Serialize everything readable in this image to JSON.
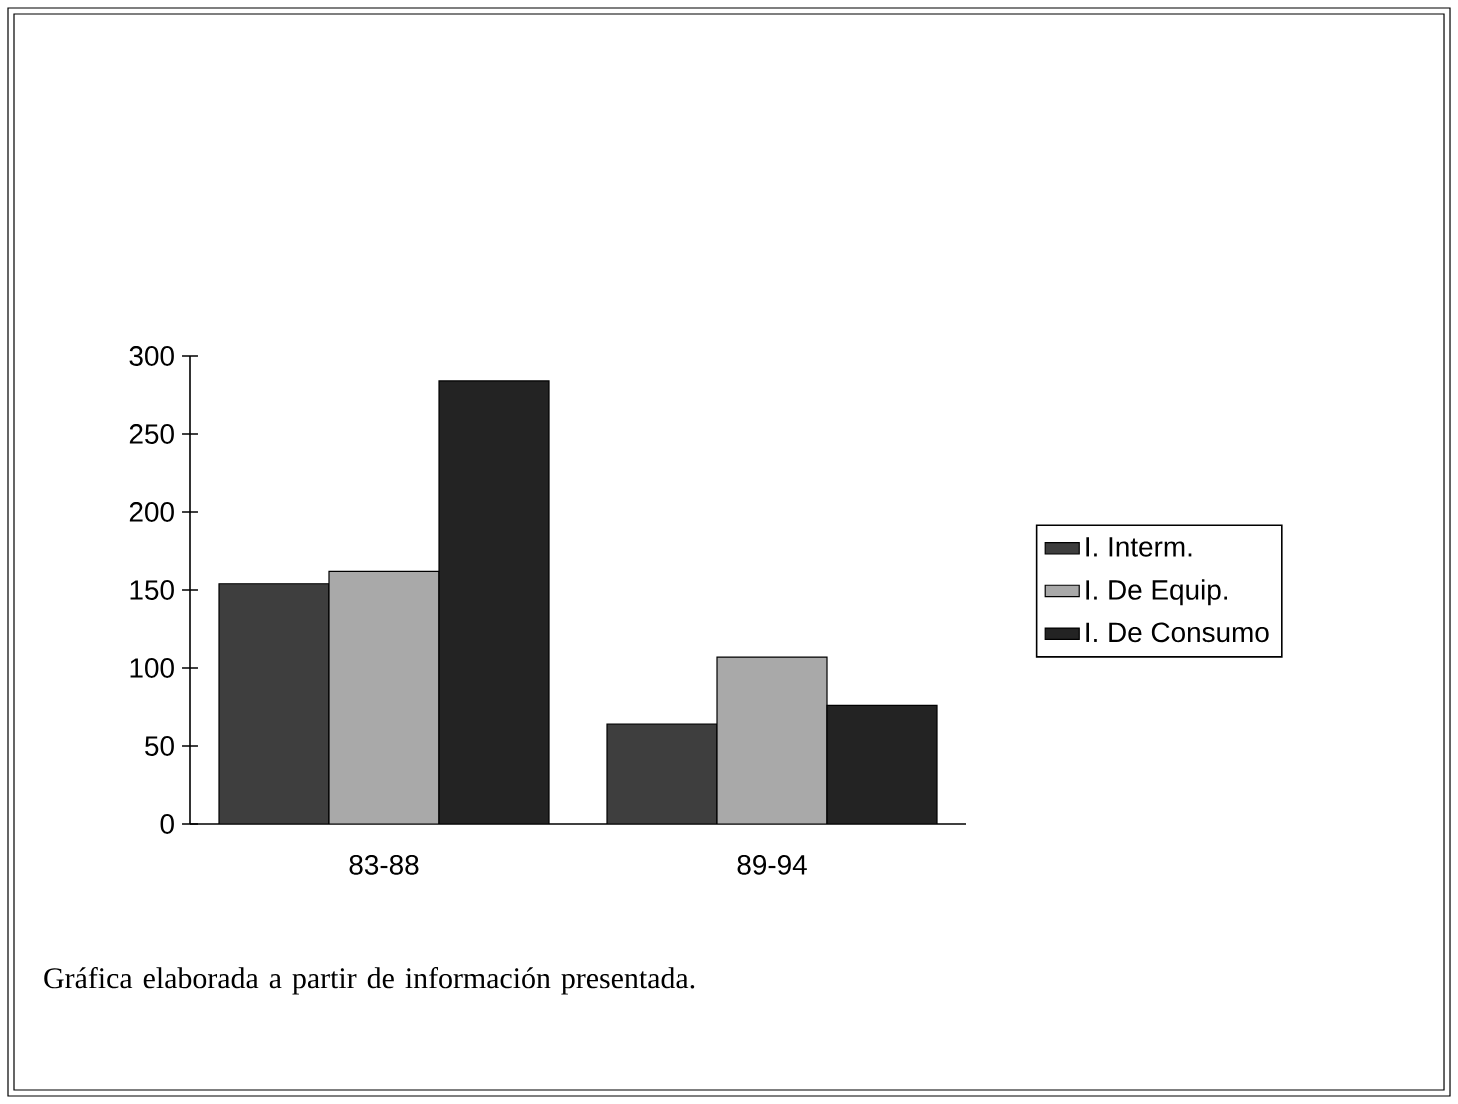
{
  "chart_data": {
    "type": "bar",
    "categories": [
      "83-88",
      "89-94"
    ],
    "series": [
      {
        "name": "I. Interm.",
        "color": "#3e3e3e",
        "values": [
          154,
          64
        ]
      },
      {
        "name": "I. De Equip.",
        "color": "#a9a9a9",
        "values": [
          162,
          107
        ]
      },
      {
        "name": "I. De Consumo",
        "color": "#232323",
        "values": [
          284,
          76
        ]
      }
    ],
    "ylim": [
      0,
      300
    ],
    "yticks": [
      0,
      50,
      100,
      150,
      200,
      250,
      300
    ],
    "grid": false,
    "legend": "right",
    "annotations": [
      "Gráfica elaborada a partir de información presentada."
    ]
  }
}
